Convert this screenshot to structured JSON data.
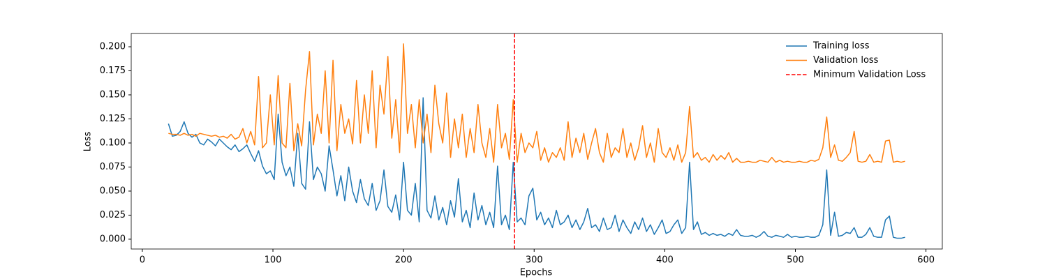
{
  "chart_data": {
    "type": "line",
    "xlabel": "Epochs",
    "ylabel": "Loss",
    "x": [
      20,
      23,
      26,
      29,
      32,
      35,
      38,
      41,
      44,
      47,
      50,
      53,
      56,
      59,
      62,
      65,
      68,
      71,
      74,
      77,
      80,
      83,
      86,
      89,
      92,
      95,
      98,
      101,
      104,
      107,
      110,
      113,
      116,
      119,
      122,
      125,
      128,
      131,
      134,
      137,
      140,
      143,
      146,
      149,
      152,
      155,
      158,
      161,
      164,
      167,
      170,
      173,
      176,
      179,
      182,
      185,
      188,
      191,
      194,
      197,
      200,
      203,
      206,
      209,
      212,
      215,
      218,
      221,
      224,
      227,
      230,
      233,
      236,
      239,
      242,
      245,
      248,
      251,
      254,
      257,
      260,
      263,
      266,
      269,
      272,
      275,
      278,
      281,
      284,
      287,
      290,
      293,
      296,
      299,
      302,
      305,
      308,
      311,
      314,
      317,
      320,
      323,
      326,
      329,
      332,
      335,
      338,
      341,
      344,
      347,
      350,
      353,
      356,
      359,
      362,
      365,
      368,
      371,
      374,
      377,
      380,
      383,
      386,
      389,
      392,
      395,
      398,
      401,
      404,
      407,
      410,
      413,
      416,
      419,
      422,
      425,
      428,
      431,
      434,
      437,
      440,
      443,
      446,
      449,
      452,
      455,
      458,
      461,
      464,
      467,
      470,
      473,
      476,
      479,
      482,
      485,
      488,
      491,
      494,
      497,
      500,
      503,
      506,
      509,
      512,
      515,
      518,
      521,
      524,
      527,
      530,
      533,
      536,
      539,
      542,
      545,
      548,
      551,
      554,
      557,
      560,
      563,
      566,
      569,
      572,
      575,
      578,
      581,
      584
    ],
    "series": [
      {
        "name": "Training loss",
        "color": "#1f77b4",
        "values": [
          0.12,
          0.107,
          0.108,
          0.112,
          0.122,
          0.11,
          0.106,
          0.109,
          0.1,
          0.098,
          0.104,
          0.101,
          0.097,
          0.104,
          0.1,
          0.096,
          0.093,
          0.098,
          0.091,
          0.094,
          0.098,
          0.089,
          0.081,
          0.092,
          0.076,
          0.068,
          0.071,
          0.062,
          0.13,
          0.08,
          0.066,
          0.075,
          0.055,
          0.11,
          0.058,
          0.052,
          0.122,
          0.062,
          0.075,
          0.068,
          0.05,
          0.097,
          0.072,
          0.045,
          0.066,
          0.04,
          0.075,
          0.05,
          0.038,
          0.062,
          0.042,
          0.035,
          0.058,
          0.03,
          0.04,
          0.072,
          0.034,
          0.028,
          0.046,
          0.02,
          0.08,
          0.03,
          0.025,
          0.058,
          0.018,
          0.147,
          0.03,
          0.022,
          0.045,
          0.02,
          0.033,
          0.015,
          0.04,
          0.023,
          0.063,
          0.018,
          0.03,
          0.012,
          0.048,
          0.02,
          0.035,
          0.015,
          0.028,
          0.012,
          0.076,
          0.015,
          0.025,
          0.01,
          0.08,
          0.018,
          0.022,
          0.015,
          0.045,
          0.053,
          0.02,
          0.028,
          0.015,
          0.022,
          0.012,
          0.03,
          0.015,
          0.018,
          0.025,
          0.012,
          0.02,
          0.01,
          0.018,
          0.032,
          0.012,
          0.015,
          0.008,
          0.022,
          0.01,
          0.012,
          0.025,
          0.008,
          0.02,
          0.012,
          0.006,
          0.018,
          0.01,
          0.022,
          0.008,
          0.015,
          0.005,
          0.012,
          0.02,
          0.006,
          0.008,
          0.015,
          0.02,
          0.006,
          0.012,
          0.08,
          0.01,
          0.018,
          0.005,
          0.007,
          0.004,
          0.006,
          0.004,
          0.005,
          0.003,
          0.006,
          0.004,
          0.01,
          0.004,
          0.003,
          0.003,
          0.004,
          0.002,
          0.004,
          0.008,
          0.003,
          0.002,
          0.004,
          0.003,
          0.002,
          0.005,
          0.002,
          0.003,
          0.002,
          0.002,
          0.003,
          0.002,
          0.002,
          0.004,
          0.015,
          0.072,
          0.004,
          0.028,
          0.003,
          0.004,
          0.007,
          0.006,
          0.012,
          0.002,
          0.002,
          0.005,
          0.012,
          0.003,
          0.002,
          0.002,
          0.02,
          0.024,
          0.002,
          0.001,
          0.001,
          0.002
        ]
      },
      {
        "name": "Validation loss",
        "color": "#ff7f0e",
        "values": [
          0.11,
          0.109,
          0.109,
          0.108,
          0.11,
          0.108,
          0.109,
          0.107,
          0.11,
          0.109,
          0.108,
          0.107,
          0.108,
          0.106,
          0.107,
          0.105,
          0.109,
          0.104,
          0.106,
          0.115,
          0.1,
          0.112,
          0.098,
          0.169,
          0.095,
          0.1,
          0.15,
          0.098,
          0.17,
          0.1,
          0.095,
          0.162,
          0.092,
          0.12,
          0.097,
          0.155,
          0.195,
          0.098,
          0.13,
          0.11,
          0.175,
          0.1,
          0.186,
          0.092,
          0.14,
          0.11,
          0.125,
          0.099,
          0.165,
          0.1,
          0.15,
          0.11,
          0.175,
          0.095,
          0.16,
          0.13,
          0.19,
          0.105,
          0.145,
          0.09,
          0.203,
          0.11,
          0.14,
          0.095,
          0.145,
          0.1,
          0.13,
          0.09,
          0.16,
          0.12,
          0.1,
          0.152,
          0.085,
          0.125,
          0.095,
          0.13,
          0.085,
          0.115,
          0.09,
          0.14,
          0.1,
          0.085,
          0.115,
          0.08,
          0.14,
          0.095,
          0.11,
          0.083,
          0.145,
          0.08,
          0.11,
          0.09,
          0.1,
          0.095,
          0.112,
          0.082,
          0.095,
          0.08,
          0.09,
          0.085,
          0.095,
          0.082,
          0.122,
          0.085,
          0.105,
          0.09,
          0.11,
          0.083,
          0.1,
          0.115,
          0.09,
          0.08,
          0.11,
          0.085,
          0.095,
          0.09,
          0.115,
          0.085,
          0.1,
          0.082,
          0.095,
          0.118,
          0.085,
          0.1,
          0.08,
          0.115,
          0.09,
          0.085,
          0.095,
          0.082,
          0.098,
          0.08,
          0.09,
          0.138,
          0.085,
          0.09,
          0.082,
          0.085,
          0.08,
          0.088,
          0.082,
          0.087,
          0.083,
          0.09,
          0.08,
          0.084,
          0.08,
          0.08,
          0.081,
          0.08,
          0.08,
          0.082,
          0.081,
          0.08,
          0.085,
          0.08,
          0.082,
          0.08,
          0.081,
          0.08,
          0.08,
          0.081,
          0.08,
          0.08,
          0.082,
          0.081,
          0.083,
          0.095,
          0.127,
          0.085,
          0.098,
          0.082,
          0.081,
          0.085,
          0.09,
          0.112,
          0.081,
          0.08,
          0.081,
          0.088,
          0.08,
          0.081,
          0.08,
          0.102,
          0.103,
          0.08,
          0.081,
          0.08,
          0.081
        ]
      }
    ],
    "vline": {
      "name": "Minimum Validation Loss",
      "x": 285,
      "color": "#ff0000",
      "dashed": true
    },
    "xlim": [
      -8.5,
      612.5
    ],
    "ylim": [
      -0.0102,
      0.2138
    ],
    "xticks": [
      0,
      100,
      200,
      300,
      400,
      500,
      600
    ],
    "yticks": [
      {
        "value": 0,
        "label": "0.000"
      },
      {
        "value": 0.025,
        "label": "0.025"
      },
      {
        "value": 0.05,
        "label": "0.050"
      },
      {
        "value": 0.075,
        "label": "0.075"
      },
      {
        "value": 0.1,
        "label": "0.100"
      },
      {
        "value": 0.125,
        "label": "0.125"
      },
      {
        "value": 0.15,
        "label": "0.150"
      },
      {
        "value": 0.175,
        "label": "0.175"
      },
      {
        "value": 0.2,
        "label": "0.200"
      }
    ],
    "legend": "upper right",
    "grid": false
  }
}
